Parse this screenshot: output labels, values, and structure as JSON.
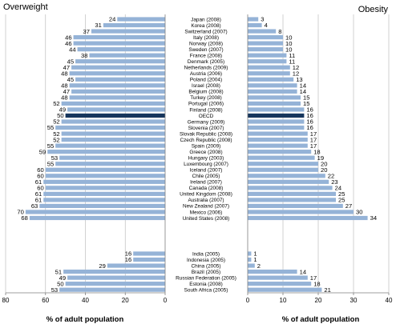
{
  "chart_data": {
    "type": "bar",
    "orientation": "horizontal",
    "layout": "two back-to-back panels sharing country labels in the middle",
    "grid": true,
    "colors": {
      "bar": "#95b3d7",
      "highlight": "#17365d",
      "grid": "#bfbfbf"
    },
    "panels": [
      {
        "title": "Overweight",
        "xlabel": "% of adult population",
        "xlim": [
          0,
          80
        ],
        "direction": "right-to-left",
        "xticks": [
          "80",
          "60",
          "40",
          "20",
          "0"
        ]
      },
      {
        "title": "Obesity",
        "xlabel": "% of adult population",
        "xlim": [
          0,
          40
        ],
        "direction": "left-to-right",
        "xticks": [
          "0",
          "10",
          "20",
          "30",
          "40"
        ]
      }
    ],
    "groups": [
      {
        "rows": [
          {
            "country": "Japan (2008)",
            "overweight": 24,
            "obesity": 3
          },
          {
            "country": "Korea (2008)",
            "overweight": 31,
            "obesity": 4
          },
          {
            "country": "Switzerland (2007)",
            "overweight": 37,
            "obesity": 8
          },
          {
            "country": "Italy (2008)",
            "overweight": 46,
            "obesity": 10
          },
          {
            "country": "Norway (2008)",
            "overweight": 46,
            "obesity": 10
          },
          {
            "country": "Sweden (2007)",
            "overweight": 44,
            "obesity": 10
          },
          {
            "country": "France (2008)",
            "overweight": 38,
            "obesity": 11
          },
          {
            "country": "Denmark (2005)",
            "overweight": 45,
            "obesity": 11
          },
          {
            "country": "Netherlands (2009)",
            "overweight": 47,
            "obesity": 12
          },
          {
            "country": "Austria (2006)",
            "overweight": 48,
            "obesity": 12
          },
          {
            "country": "Poland (2004)",
            "overweight": 45,
            "obesity": 13
          },
          {
            "country": "Israel (2008)",
            "overweight": 48,
            "obesity": 14
          },
          {
            "country": "Belgium (2008)",
            "overweight": 47,
            "obesity": 14
          },
          {
            "country": "Turkey (2008)",
            "overweight": 48,
            "obesity": 15
          },
          {
            "country": "Portugal (2006)",
            "overweight": 52,
            "obesity": 15
          },
          {
            "country": "Finland (2008)",
            "overweight": 49,
            "obesity": 16
          },
          {
            "country": "OECD",
            "overweight": 50,
            "obesity": 16,
            "highlight": true
          },
          {
            "country": "Germany (2009)",
            "overweight": 52,
            "obesity": 16
          },
          {
            "country": "Slovenia (2007)",
            "overweight": 55,
            "obesity": 16
          },
          {
            "country": "Slovak Republic (2008)",
            "overweight": 52,
            "obesity": 17
          },
          {
            "country": "Czech Republic (2008)",
            "overweight": 52,
            "obesity": 17
          },
          {
            "country": "Spain (2009)",
            "overweight": 55,
            "obesity": 17
          },
          {
            "country": "Greece (2008)",
            "overweight": 59,
            "obesity": 18
          },
          {
            "country": "Hungary (2003)",
            "overweight": 53,
            "obesity": 19
          },
          {
            "country": "Luxembourg (2007)",
            "overweight": 55,
            "obesity": 20
          },
          {
            "country": "Iceland (2007)",
            "overweight": 60,
            "obesity": 20
          },
          {
            "country": "Chile (2005)",
            "overweight": 60,
            "obesity": 22
          },
          {
            "country": "Ireland (2007)",
            "overweight": 61,
            "obesity": 23
          },
          {
            "country": "Canada (2008)",
            "overweight": 60,
            "obesity": 24
          },
          {
            "country": "United Kingdom (2008)",
            "overweight": 61,
            "obesity": 25
          },
          {
            "country": "Australia (2007)",
            "overweight": 61,
            "obesity": 25
          },
          {
            "country": "New Zealand (2007)",
            "overweight": 63,
            "obesity": 27
          },
          {
            "country": "Mexico (2006)",
            "overweight": 70,
            "obesity": 30
          },
          {
            "country": "United States (2008)",
            "overweight": 68,
            "obesity": 34
          }
        ]
      },
      {
        "rows": [
          {
            "country": "India (2005)",
            "overweight": 16,
            "obesity": 1
          },
          {
            "country": "Indonesia (2005)",
            "overweight": 16,
            "obesity": 1
          },
          {
            "country": "China (2005)",
            "overweight": 29,
            "obesity": 2
          },
          {
            "country": "Brazil (2005)",
            "overweight": 51,
            "obesity": 14
          },
          {
            "country": "Russian Federation (2005)",
            "overweight": 49,
            "obesity": 17
          },
          {
            "country": "Estonia (2008)",
            "overweight": 50,
            "obesity": 18
          },
          {
            "country": "South Africa (2005)",
            "overweight": 53,
            "obesity": 21
          }
        ]
      }
    ]
  }
}
